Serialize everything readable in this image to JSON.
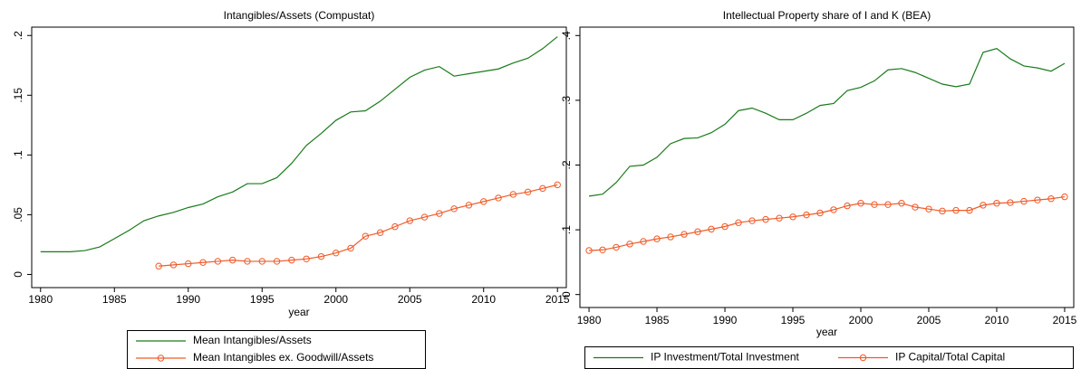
{
  "chart_data": [
    {
      "type": "line",
      "title": "Intangibles/Assets (Compustat)",
      "xlabel": "year",
      "x": [
        1980,
        1981,
        1982,
        1983,
        1984,
        1985,
        1986,
        1987,
        1988,
        1989,
        1990,
        1991,
        1992,
        1993,
        1994,
        1995,
        1996,
        1997,
        1998,
        1999,
        2000,
        2001,
        2002,
        2003,
        2004,
        2005,
        2006,
        2007,
        2008,
        2009,
        2010,
        2011,
        2012,
        2013,
        2014,
        2015
      ],
      "series": [
        {
          "name": "Mean Intangibles/Assets",
          "color": "#1a7a1a",
          "marker": "none",
          "values": [
            0.019,
            0.019,
            0.019,
            0.02,
            0.023,
            0.03,
            0.037,
            0.045,
            0.049,
            0.052,
            0.056,
            0.059,
            0.065,
            0.069,
            0.076,
            0.076,
            0.081,
            0.093,
            0.108,
            0.118,
            0.129,
            0.136,
            0.137,
            0.145,
            0.155,
            0.165,
            0.171,
            0.174,
            0.166,
            0.168,
            0.17,
            0.172,
            0.177,
            0.181,
            0.189,
            0.199
          ]
        },
        {
          "name": "Mean Intangibles ex. Goodwill/Assets",
          "color": "#f05a28",
          "marker": "circle",
          "values": [
            null,
            null,
            null,
            null,
            null,
            null,
            null,
            null,
            0.007,
            0.008,
            0.009,
            0.01,
            0.011,
            0.012,
            0.011,
            0.011,
            0.011,
            0.012,
            0.013,
            0.015,
            0.018,
            0.022,
            0.032,
            0.035,
            0.04,
            0.045,
            0.048,
            0.051,
            0.055,
            0.058,
            0.061,
            0.064,
            0.067,
            0.069,
            0.072,
            0.075
          ]
        }
      ],
      "xlim": [
        1979.4,
        2015.6
      ],
      "xticks": [
        1980,
        1985,
        1990,
        1995,
        2000,
        2005,
        2010,
        2015
      ],
      "ylim": [
        -0.011,
        0.207
      ],
      "yticks": [
        0,
        {
          "value": 0.05,
          "label": ".05"
        },
        {
          "value": 0.1,
          "label": ".1"
        },
        {
          "value": 0.15,
          "label": ".15"
        },
        {
          "value": 0.2,
          "label": ".2"
        }
      ],
      "grid": false
    },
    {
      "type": "line",
      "title": "Intellectual Property share of I and K (BEA)",
      "xlabel": "year",
      "x": [
        1980,
        1981,
        1982,
        1983,
        1984,
        1985,
        1986,
        1987,
        1988,
        1989,
        1990,
        1991,
        1992,
        1993,
        1994,
        1995,
        1996,
        1997,
        1998,
        1999,
        2000,
        2001,
        2002,
        2003,
        2004,
        2005,
        2006,
        2007,
        2008,
        2009,
        2010,
        2011,
        2012,
        2013,
        2014,
        2015
      ],
      "series": [
        {
          "name": "IP Investment/Total Investment",
          "color": "#1a7a1a",
          "marker": "none",
          "values": [
            0.152,
            0.155,
            0.173,
            0.198,
            0.2,
            0.212,
            0.233,
            0.241,
            0.242,
            0.25,
            0.263,
            0.284,
            0.288,
            0.28,
            0.27,
            0.27,
            0.28,
            0.292,
            0.295,
            0.315,
            0.32,
            0.33,
            0.347,
            0.349,
            0.343,
            0.334,
            0.325,
            0.321,
            0.325,
            0.374,
            0.38,
            0.364,
            0.353,
            0.35,
            0.345,
            0.357
          ]
        },
        {
          "name": "IP Capital/Total Capital",
          "color": "#f05a28",
          "marker": "circle",
          "values": [
            0.068,
            0.069,
            0.073,
            0.078,
            0.082,
            0.086,
            0.089,
            0.093,
            0.097,
            0.101,
            0.105,
            0.111,
            0.114,
            0.116,
            0.118,
            0.12,
            0.123,
            0.126,
            0.131,
            0.137,
            0.141,
            0.139,
            0.139,
            0.141,
            0.135,
            0.132,
            0.129,
            0.13,
            0.13,
            0.138,
            0.141,
            0.142,
            0.144,
            0.146,
            0.148,
            0.151
          ]
        }
      ],
      "xlim": [
        1979.33,
        2015.67
      ],
      "xticks": [
        1980,
        1985,
        1990,
        1995,
        2000,
        2005,
        2010,
        2015
      ],
      "ylim": [
        -0.02,
        0.413
      ],
      "yticks": [
        0,
        {
          "value": 0.1,
          "label": ".1"
        },
        {
          "value": 0.2,
          "label": ".2"
        },
        {
          "value": 0.3,
          "label": ".3"
        },
        {
          "value": 0.4,
          "label": ".4"
        }
      ],
      "grid": false
    }
  ]
}
